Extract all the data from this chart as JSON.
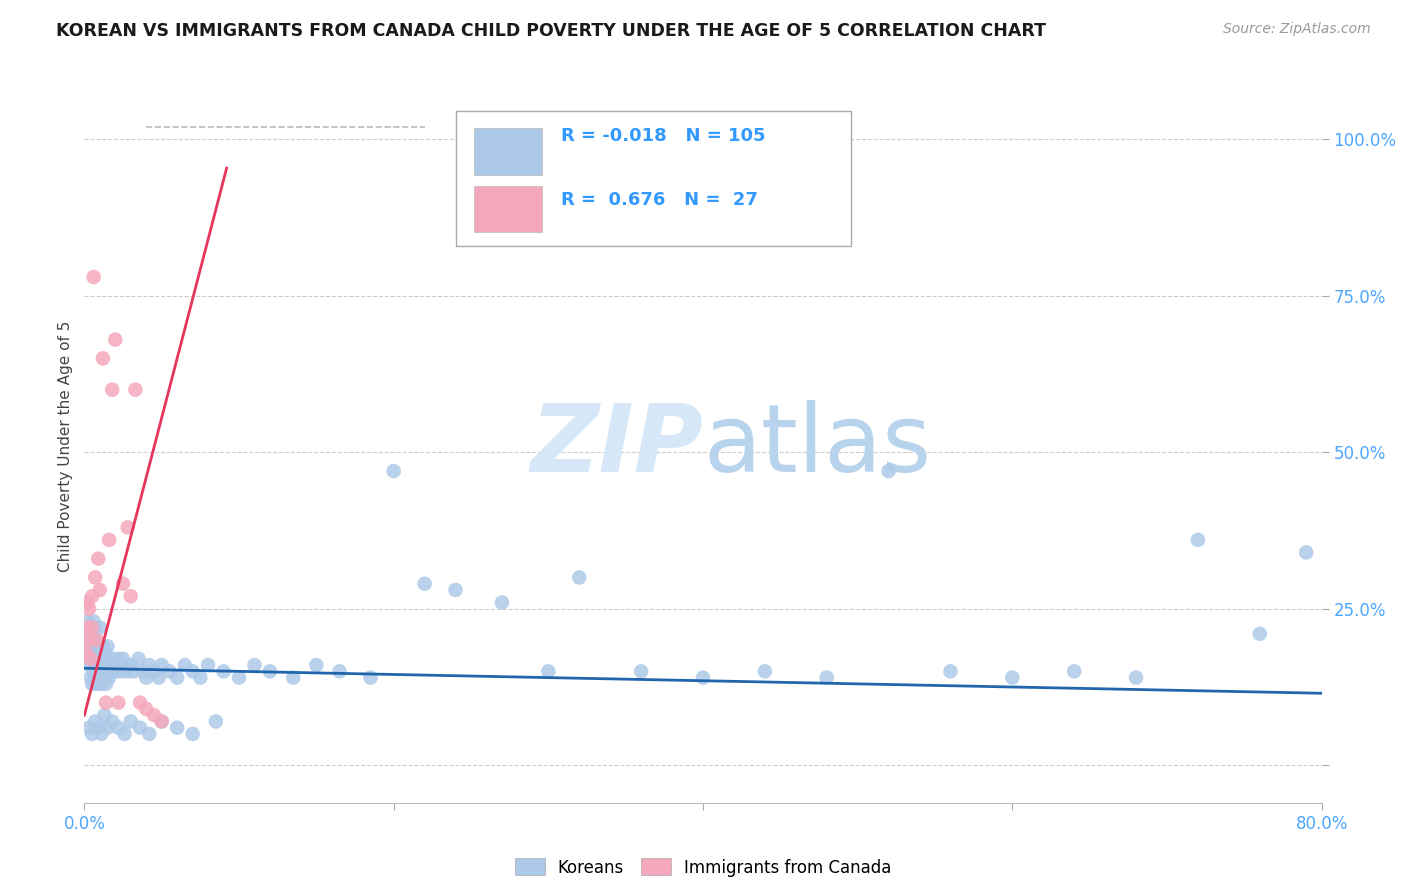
{
  "title": "KOREAN VS IMMIGRANTS FROM CANADA CHILD POVERTY UNDER THE AGE OF 5 CORRELATION CHART",
  "source": "Source: ZipAtlas.com",
  "ylabel": "Child Poverty Under the Age of 5",
  "legend_korean_R": "-0.018",
  "legend_korean_N": "105",
  "legend_canada_R": "0.676",
  "legend_canada_N": "27",
  "korean_color": "#adc9e8",
  "canada_color": "#f5a8bb",
  "korean_line_color": "#2166ac",
  "canada_line_color": "#e8355a",
  "watermark_zip": "ZIP",
  "watermark_atlas": "atlas",
  "background_color": "#ffffff",
  "grid_color": "#cccccc",
  "xlim": [
    0.0,
    0.8
  ],
  "ylim": [
    -0.06,
    1.08
  ],
  "korean_points_x": [
    0.001,
    0.002,
    0.002,
    0.003,
    0.003,
    0.004,
    0.004,
    0.004,
    0.005,
    0.005,
    0.005,
    0.006,
    0.006,
    0.006,
    0.007,
    0.007,
    0.007,
    0.008,
    0.008,
    0.008,
    0.009,
    0.009,
    0.01,
    0.01,
    0.01,
    0.011,
    0.011,
    0.012,
    0.012,
    0.013,
    0.013,
    0.014,
    0.014,
    0.015,
    0.015,
    0.016,
    0.017,
    0.018,
    0.019,
    0.02,
    0.021,
    0.022,
    0.023,
    0.024,
    0.025,
    0.026,
    0.028,
    0.03,
    0.032,
    0.035,
    0.038,
    0.04,
    0.042,
    0.045,
    0.048,
    0.05,
    0.055,
    0.06,
    0.065,
    0.07,
    0.075,
    0.08,
    0.09,
    0.1,
    0.11,
    0.12,
    0.135,
    0.15,
    0.165,
    0.185,
    0.2,
    0.22,
    0.24,
    0.27,
    0.3,
    0.32,
    0.36,
    0.4,
    0.44,
    0.48,
    0.52,
    0.56,
    0.6,
    0.64,
    0.68,
    0.72,
    0.76,
    0.79,
    0.003,
    0.005,
    0.007,
    0.009,
    0.011,
    0.013,
    0.015,
    0.018,
    0.022,
    0.026,
    0.03,
    0.036,
    0.042,
    0.05,
    0.06,
    0.07,
    0.085
  ],
  "korean_points_y": [
    0.17,
    0.2,
    0.23,
    0.16,
    0.19,
    0.14,
    0.18,
    0.22,
    0.13,
    0.17,
    0.21,
    0.15,
    0.19,
    0.23,
    0.14,
    0.18,
    0.22,
    0.13,
    0.17,
    0.2,
    0.15,
    0.19,
    0.14,
    0.18,
    0.22,
    0.13,
    0.17,
    0.15,
    0.19,
    0.14,
    0.18,
    0.13,
    0.17,
    0.15,
    0.19,
    0.14,
    0.16,
    0.15,
    0.17,
    0.16,
    0.15,
    0.17,
    0.16,
    0.15,
    0.17,
    0.16,
    0.15,
    0.16,
    0.15,
    0.17,
    0.15,
    0.14,
    0.16,
    0.15,
    0.14,
    0.16,
    0.15,
    0.14,
    0.16,
    0.15,
    0.14,
    0.16,
    0.15,
    0.14,
    0.16,
    0.15,
    0.14,
    0.16,
    0.15,
    0.14,
    0.47,
    0.29,
    0.28,
    0.26,
    0.15,
    0.3,
    0.15,
    0.14,
    0.15,
    0.14,
    0.47,
    0.15,
    0.14,
    0.15,
    0.14,
    0.36,
    0.21,
    0.34,
    0.06,
    0.05,
    0.07,
    0.06,
    0.05,
    0.08,
    0.06,
    0.07,
    0.06,
    0.05,
    0.07,
    0.06,
    0.05,
    0.07,
    0.06,
    0.05,
    0.07
  ],
  "canada_points_x": [
    0.001,
    0.002,
    0.002,
    0.003,
    0.003,
    0.004,
    0.005,
    0.005,
    0.006,
    0.007,
    0.008,
    0.009,
    0.01,
    0.012,
    0.014,
    0.016,
    0.018,
    0.02,
    0.022,
    0.025,
    0.028,
    0.03,
    0.033,
    0.036,
    0.04,
    0.045,
    0.05
  ],
  "canada_points_y": [
    0.18,
    0.22,
    0.26,
    0.2,
    0.25,
    0.17,
    0.22,
    0.27,
    0.78,
    0.3,
    0.2,
    0.33,
    0.28,
    0.65,
    0.1,
    0.36,
    0.6,
    0.68,
    0.1,
    0.29,
    0.38,
    0.27,
    0.6,
    0.1,
    0.09,
    0.08,
    0.07
  ],
  "korean_line_slope": -0.05,
  "korean_line_intercept": 0.155,
  "canada_line_slope": 9.5,
  "canada_line_intercept": 0.08,
  "dashed_line_x": [
    0.04,
    0.22
  ],
  "dashed_line_y": [
    1.02,
    1.02
  ]
}
